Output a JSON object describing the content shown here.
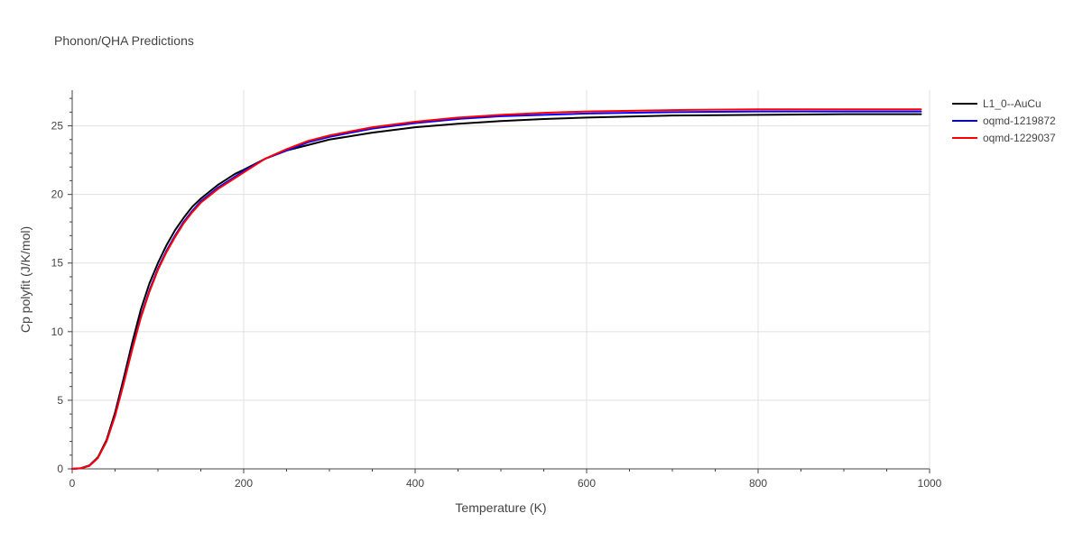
{
  "chart_data": {
    "type": "line",
    "title": "Phonon/QHA Predictions",
    "xlabel": "Temperature (K)",
    "ylabel": "Cp polyfit (J/K/mol)",
    "xlim": [
      0,
      1000
    ],
    "ylim": [
      0,
      27.6
    ],
    "xticks": [
      0,
      200,
      400,
      600,
      800,
      1000
    ],
    "yticks": [
      0,
      5,
      10,
      15,
      20,
      25
    ],
    "grid": true,
    "legend_position": "top-right",
    "series": [
      {
        "name": "L1_0--AuCu",
        "color": "#000000",
        "x": [
          0,
          10,
          20,
          30,
          40,
          50,
          60,
          70,
          80,
          90,
          100,
          110,
          120,
          130,
          140,
          150,
          160,
          170,
          180,
          190,
          200,
          225,
          250,
          275,
          300,
          350,
          400,
          450,
          500,
          550,
          600,
          700,
          800,
          900,
          990
        ],
        "y": [
          0,
          0.05,
          0.25,
          0.85,
          2.1,
          4.1,
          6.6,
          9.2,
          11.6,
          13.5,
          15.0,
          16.3,
          17.4,
          18.3,
          19.1,
          19.7,
          20.2,
          20.7,
          21.1,
          21.5,
          21.8,
          22.6,
          23.2,
          23.6,
          24.0,
          24.5,
          24.9,
          25.15,
          25.35,
          25.5,
          25.6,
          25.75,
          25.8,
          25.85,
          25.85
        ]
      },
      {
        "name": "oqmd-1219872",
        "color": "#0000ff",
        "x": [
          0,
          10,
          20,
          30,
          40,
          50,
          60,
          70,
          80,
          90,
          100,
          110,
          120,
          130,
          140,
          150,
          160,
          170,
          180,
          190,
          200,
          225,
          250,
          275,
          300,
          350,
          400,
          450,
          500,
          550,
          600,
          700,
          800,
          900,
          990
        ],
        "y": [
          0,
          0.04,
          0.22,
          0.8,
          2.0,
          3.9,
          6.3,
          8.8,
          11.1,
          13.0,
          14.6,
          15.9,
          17.0,
          18.0,
          18.8,
          19.5,
          20.0,
          20.5,
          20.9,
          21.3,
          21.7,
          22.6,
          23.2,
          23.8,
          24.2,
          24.8,
          25.2,
          25.5,
          25.7,
          25.8,
          25.9,
          26.0,
          26.05,
          26.05,
          26.05
        ]
      },
      {
        "name": "oqmd-1229037",
        "color": "#ff0000",
        "x": [
          0,
          10,
          20,
          30,
          40,
          50,
          60,
          70,
          80,
          90,
          100,
          110,
          120,
          130,
          140,
          150,
          160,
          170,
          180,
          190,
          200,
          225,
          250,
          275,
          300,
          350,
          400,
          450,
          500,
          550,
          600,
          700,
          800,
          900,
          990
        ],
        "y": [
          0,
          0.04,
          0.22,
          0.8,
          2.0,
          3.85,
          6.2,
          8.7,
          11.0,
          12.9,
          14.5,
          15.8,
          16.9,
          17.9,
          18.7,
          19.4,
          19.9,
          20.4,
          20.8,
          21.2,
          21.6,
          22.6,
          23.3,
          23.9,
          24.3,
          24.9,
          25.3,
          25.6,
          25.8,
          25.95,
          26.05,
          26.15,
          26.2,
          26.2,
          26.2
        ]
      }
    ]
  }
}
